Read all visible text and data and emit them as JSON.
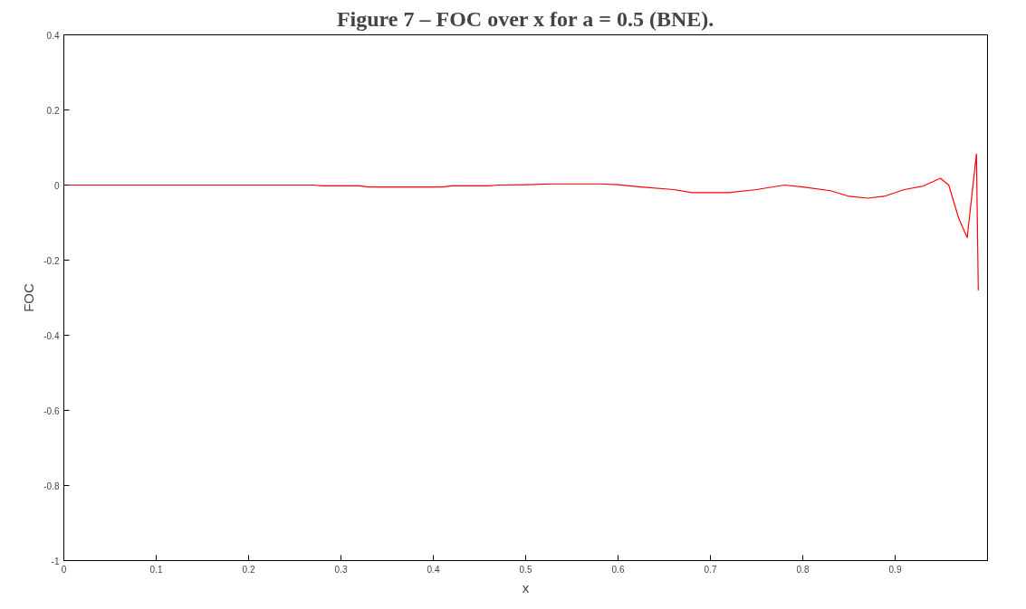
{
  "chart_data": {
    "type": "line",
    "title": "Figure 7 – FOC over x for a = 0.5 (BNE).",
    "xlabel": "x",
    "ylabel": "FOC",
    "x": [
      0,
      0.27,
      0.28,
      0.32,
      0.33,
      0.41,
      0.42,
      0.46,
      0.47,
      0.5,
      0.53,
      0.58,
      0.6,
      0.625,
      0.66,
      0.68,
      0.72,
      0.75,
      0.78,
      0.8,
      0.83,
      0.85,
      0.87,
      0.888,
      0.91,
      0.93,
      0.949,
      0.958,
      0.969,
      0.978,
      0.988,
      0.99
    ],
    "series": [
      {
        "color": "#ff0000",
        "values": [
          0,
          0,
          -0.002,
          -0.002,
          -0.005,
          -0.005,
          -0.002,
          -0.002,
          0,
          0.001,
          0.003,
          0.003,
          0.001,
          -0.005,
          -0.012,
          -0.02,
          -0.02,
          -0.012,
          0,
          -0.005,
          -0.015,
          -0.03,
          -0.035,
          -0.03,
          -0.012,
          -0.003,
          0.018,
          0,
          -0.09,
          -0.14,
          0.083,
          -0.28
        ]
      }
    ],
    "xlim": [
      0,
      1
    ],
    "xticks": [
      0,
      0.1,
      0.2,
      0.3,
      0.4,
      0.5,
      0.6,
      0.7,
      0.8,
      0.9
    ],
    "ylim": [
      -1,
      0.4
    ],
    "yticks": [
      -1,
      -0.8,
      -0.6,
      -0.4,
      -0.2,
      0,
      0.2,
      0.4
    ],
    "grid": false,
    "line_style": "solid",
    "marker": "none"
  }
}
